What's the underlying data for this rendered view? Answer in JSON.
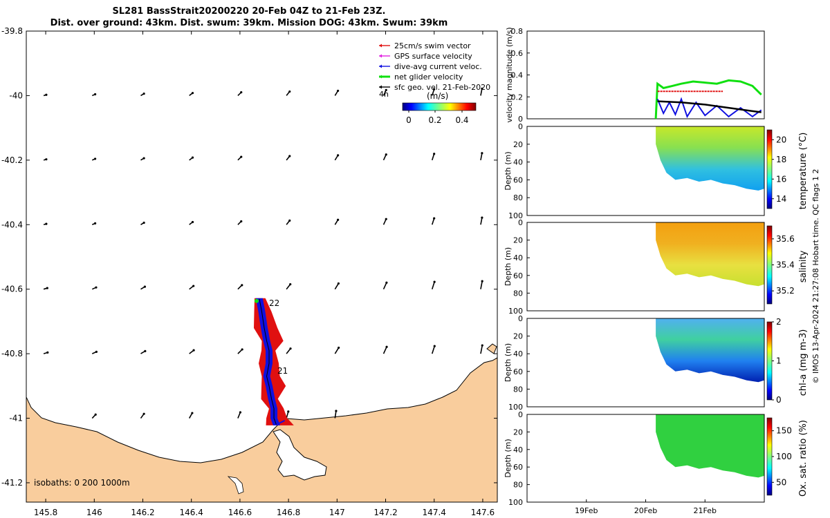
{
  "title_line1": "SL281 BassStrait20200220 20-Feb 04Z to 21-Feb 23Z.",
  "title_line2": "Dist. over ground: 43km. Dist. swum: 39km. Mission DOG: 43km. Swum: 39km",
  "chart_data": [
    {
      "type": "scatter",
      "panel": "map",
      "x_ticks": [
        "145.8",
        "146",
        "146.2",
        "146.4",
        "146.6",
        "146.8",
        "147",
        "147.2",
        "147.4",
        "147.6"
      ],
      "y_ticks": [
        "-39.8",
        "-40",
        "-40.2",
        "-40.4",
        "-40.6",
        "-40.8",
        "-41",
        "-41.2"
      ],
      "xlim": [
        145.72,
        147.66
      ],
      "ylim": [
        -41.26,
        -39.8
      ],
      "legend": [
        "25cm/s swim vector",
        "GPS surface velocity",
        "dive-avg current veloc.",
        "net glider velocity",
        "sfc geo. vel. 21-Feb-2020"
      ],
      "legend_colors": [
        "#e01010",
        "#e020e0",
        "#1010e0",
        "#10e010",
        "#000000"
      ],
      "legend_extra": "4h",
      "colorbar_label": "(m/s)",
      "colorbar_ticks": [
        "0",
        "0.2",
        "0.4"
      ],
      "day_labels": [
        "22",
        "21"
      ],
      "isobaths": "isobaths: 0   200  1000m",
      "track": [
        [
          146.68,
          -40.63
        ],
        [
          146.69,
          -40.67
        ],
        [
          146.7,
          -40.72
        ],
        [
          146.71,
          -40.76
        ],
        [
          146.72,
          -40.79
        ],
        [
          146.72,
          -40.83
        ],
        [
          146.71,
          -40.87
        ],
        [
          146.72,
          -40.9
        ],
        [
          146.73,
          -40.94
        ],
        [
          146.74,
          -40.97
        ],
        [
          146.74,
          -41.0
        ],
        [
          146.75,
          -41.02
        ]
      ],
      "geo_vectors_note": "grid of surface geostrophic velocity arrows (black)"
    },
    {
      "type": "line",
      "panel": "velocity",
      "ylabel": "velocity magnitude (m/s)",
      "y_ticks": [
        "0",
        "0.2",
        "0.4",
        "0.6",
        "0.8"
      ],
      "ylim": [
        0,
        0.8
      ],
      "xlim_days": [
        18,
        22
      ],
      "series": [
        {
          "color": "#10e010",
          "values": [
            [
              20.17,
              0.0
            ],
            [
              20.2,
              0.32
            ],
            [
              20.3,
              0.28
            ],
            [
              20.45,
              0.3
            ],
            [
              20.6,
              0.32
            ],
            [
              20.8,
              0.34
            ],
            [
              21.0,
              0.33
            ],
            [
              21.2,
              0.32
            ],
            [
              21.4,
              0.35
            ],
            [
              21.6,
              0.34
            ],
            [
              21.8,
              0.3
            ],
            [
              21.95,
              0.22
            ]
          ]
        },
        {
          "color": "#e01010",
          "values": [
            [
              20.2,
              0.25
            ],
            [
              21.3,
              0.25
            ]
          ]
        },
        {
          "color": "#1010e0",
          "values": [
            [
              20.2,
              0.18
            ],
            [
              20.3,
              0.05
            ],
            [
              20.4,
              0.15
            ],
            [
              20.5,
              0.04
            ],
            [
              20.6,
              0.18
            ],
            [
              20.7,
              0.02
            ],
            [
              20.85,
              0.15
            ],
            [
              21.0,
              0.03
            ],
            [
              21.2,
              0.12
            ],
            [
              21.4,
              0.02
            ],
            [
              21.6,
              0.1
            ],
            [
              21.8,
              0.02
            ],
            [
              21.95,
              0.08
            ]
          ]
        },
        {
          "color": "#000000",
          "values": [
            [
              20.2,
              0.16
            ],
            [
              20.6,
              0.15
            ],
            [
              21.0,
              0.13
            ],
            [
              21.4,
              0.1
            ],
            [
              21.8,
              0.07
            ],
            [
              21.95,
              0.06
            ]
          ]
        }
      ]
    },
    {
      "type": "heatmap",
      "panel": "temperature",
      "ylabel": "Depth (m)",
      "cblabel": "temperature (°C)",
      "cb_ticks": [
        "20",
        "18",
        "16",
        "14"
      ],
      "clim": [
        13,
        21
      ],
      "y_ticks": [
        "0",
        "20",
        "40",
        "60",
        "80",
        "100"
      ]
    },
    {
      "type": "heatmap",
      "panel": "salinity",
      "ylabel": "Depth (m)",
      "cblabel": "salinity",
      "cb_ticks": [
        "35.6",
        "35.4",
        "35.2"
      ],
      "clim": [
        35.1,
        35.7
      ],
      "y_ticks": [
        "0",
        "20",
        "40",
        "60",
        "80",
        "100"
      ]
    },
    {
      "type": "heatmap",
      "panel": "chla",
      "ylabel": "Depth (m)",
      "cblabel": "chl-a (mg m-3)",
      "cb_ticks": [
        "2",
        "1",
        "0"
      ],
      "clim": [
        0,
        2
      ],
      "y_ticks": [
        "0",
        "20",
        "40",
        "60",
        "80",
        "100"
      ]
    },
    {
      "type": "heatmap",
      "panel": "oxygen",
      "ylabel": "Depth (m)",
      "cblabel": "Ox. sat. ratio (%)",
      "cb_ticks": [
        "150",
        "100",
        "50"
      ],
      "clim": [
        25,
        175
      ],
      "y_ticks": [
        "0",
        "20",
        "40",
        "60",
        "80",
        "100"
      ]
    }
  ],
  "time_axis": [
    "19Feb",
    "20Feb",
    "21Feb"
  ],
  "footer_vertical": "© IMOS 13-Apr-2024 21:27:08 Hobart time. QC flags 1  2"
}
